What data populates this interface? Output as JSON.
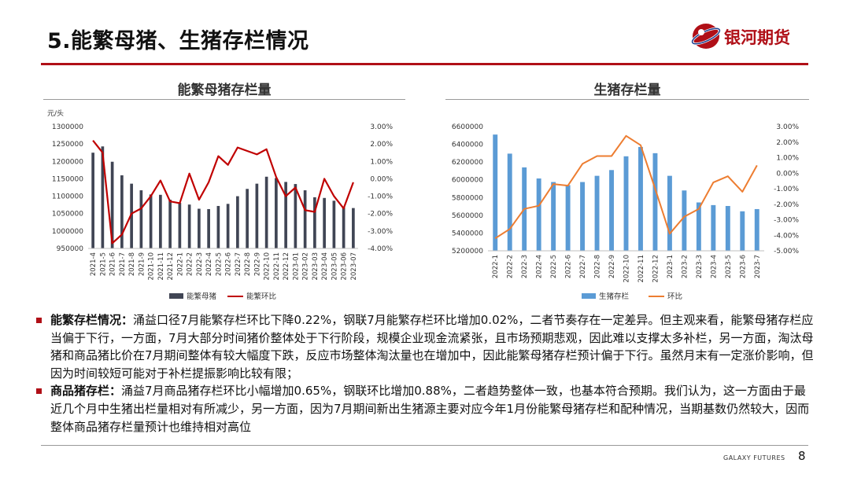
{
  "header": {
    "title": "5.能繁母猪、生猪存栏情况",
    "logo_text": "银河期货"
  },
  "footer": {
    "brand": "GALAXY FUTURES",
    "page": "8"
  },
  "colors": {
    "accent": "#b00f17",
    "sow_bar": "#404554",
    "sow_line": "#c00000",
    "hog_bar": "#5b9bd5",
    "hog_line": "#ed7d31"
  },
  "bullets": [
    {
      "label": "能繁存栏情况：",
      "text": "涌益口径7月能繁存栏环比下降0.22%，钢联7月能繁存栏环比增加0.02%，二者节奏存在一定差异。但主观来看，能繁母猪存栏应当偏于下行，一方面，7月大部分时间猪价整体处于下行阶段，规模企业现金流紧张，且市场预期悲观，因此难以支撑太多补栏，另一方面，淘汰母猪和商品猪比价在7月期间整体有较大幅度下跌，反应市场整体淘汰量也在增加中，因此能繁母猪存栏预计偏于下行。虽然月末有一定涨价影响，但因为时间较短可能对于补栏提振影响比较有限；"
    },
    {
      "label": "商品猪存栏：",
      "text": "涌益7月商品猪存栏环比小幅增加0.65%，钢联环比增加0.88%，二者趋势整体一致，也基本符合预期。我们认为，这一方面由于最近几个月中生猪出栏量相对有所减少，另一方面，因为7月期间新出生猪源主要对应今年1月份能繁母猪存栏和配种情况，当期基数仍然较大，因而整体商品猪存栏量预计也维持相对高位"
    }
  ],
  "chart_data": [
    {
      "type": "bar",
      "title": "能繁母猪存栏量",
      "ylabel": "元/头",
      "ylim": [
        950000,
        1300000
      ],
      "yticks": [
        "1300000",
        "1250000",
        "1200000",
        "1150000",
        "1100000",
        "1050000",
        "1000000",
        "950000"
      ],
      "y2lim": [
        -4.0,
        3.0
      ],
      "y2ticks": [
        "3.00%",
        "2.00%",
        "1.00%",
        "0.00%",
        "-1.00%",
        "-2.00%",
        "-3.00%",
        "-4.00%"
      ],
      "categories": [
        "2021-4",
        "2021-5",
        "2021-6",
        "2021-7",
        "2021-8",
        "2021-9",
        "2021-10",
        "2021-11",
        "2021-12",
        "2022-1",
        "2022-2",
        "2022-3",
        "2022-4",
        "2022-5",
        "2022-6",
        "2022-7",
        "2022-8",
        "2022-9",
        "2022-10",
        "2022-11",
        "2022-12",
        "2023-01",
        "2023-02",
        "2023-03",
        "2023-04",
        "2023-05",
        "2023-06",
        "2023-07"
      ],
      "series": [
        {
          "name": "能繁母猪",
          "axis": "left",
          "kind": "bar",
          "values": [
            1225000,
            1243000,
            1199000,
            1160000,
            1136000,
            1117000,
            1105000,
            1104000,
            1090000,
            1081000,
            1076000,
            1064000,
            1063000,
            1072000,
            1078000,
            1100000,
            1121000,
            1136000,
            1156000,
            1152000,
            1141000,
            1135000,
            1117000,
            1097000,
            1095000,
            1087000,
            1068000,
            1066000
          ]
        },
        {
          "name": "能繁环比",
          "axis": "right",
          "kind": "line",
          "values": [
            2.2,
            1.5,
            -3.7,
            -3.2,
            -2.0,
            -1.7,
            -1.0,
            -0.1,
            -1.3,
            -1.4,
            0.3,
            -1.2,
            -0.2,
            1.3,
            0.8,
            1.8,
            1.6,
            1.4,
            1.7,
            0.1,
            -1.0,
            -0.5,
            -1.8,
            -1.9,
            0.0,
            -1.0,
            -1.7,
            -0.2
          ]
        }
      ]
    },
    {
      "type": "bar",
      "title": "生猪存栏量",
      "ylim": [
        5200000,
        6600000
      ],
      "yticks": [
        "6600000",
        "6400000",
        "6200000",
        "6000000",
        "5800000",
        "5600000",
        "5400000",
        "5200000"
      ],
      "y2lim": [
        -5.0,
        3.0
      ],
      "y2ticks": [
        "3.00%",
        "2.00%",
        "1.00%",
        "0.00%",
        "-1.00%",
        "-2.00%",
        "-3.00%",
        "-4.00%",
        "-5.00%"
      ],
      "categories": [
        "2022-1",
        "2022-2",
        "2022-3",
        "2022-4",
        "2022-5",
        "2022-6",
        "2022-7",
        "2022-8",
        "2022-9",
        "2022-10",
        "2022-11",
        "2022-12",
        "2023-1",
        "2023-2",
        "2023-3",
        "2023-4",
        "2023-5",
        "2023-6",
        "2023-7"
      ],
      "series": [
        {
          "name": "生猪存栏",
          "axis": "left",
          "kind": "bar",
          "values": [
            6510000,
            6295000,
            6140000,
            6015000,
            5975000,
            5940000,
            5975000,
            6045000,
            6110000,
            6265000,
            6370000,
            6300000,
            6045000,
            5880000,
            5745000,
            5715000,
            5705000,
            5645000,
            5670000
          ]
        },
        {
          "name": "环比",
          "axis": "right",
          "kind": "line",
          "values": [
            -4.2,
            -3.6,
            -2.3,
            -2.1,
            -0.7,
            -0.8,
            0.6,
            1.1,
            1.1,
            2.4,
            1.8,
            -1.0,
            -3.9,
            -2.8,
            -2.3,
            -0.6,
            -0.2,
            -1.2,
            0.5
          ]
        }
      ]
    }
  ]
}
